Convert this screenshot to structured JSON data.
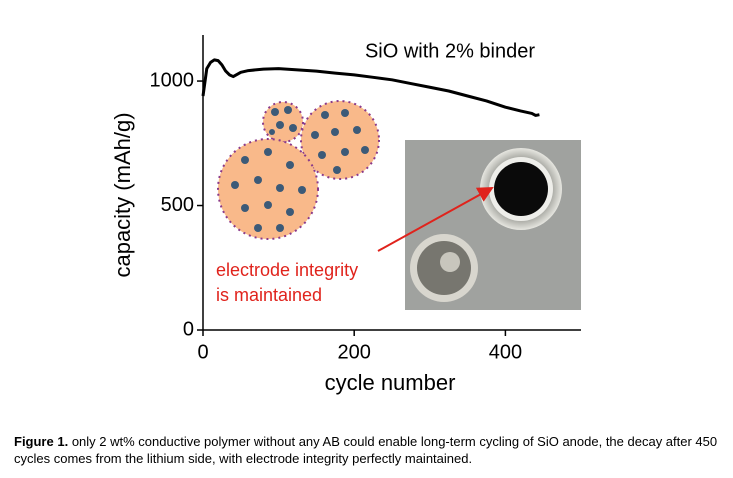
{
  "chart_data": {
    "type": "line",
    "title": "SiO with 2% binder",
    "x_label": "cycle number",
    "y_label": "capacity (mAh/g)",
    "annotations": [
      "electrode integrity",
      "is maintained"
    ],
    "x": [
      0,
      5,
      10,
      15,
      20,
      25,
      30,
      35,
      40,
      50,
      60,
      80,
      100,
      125,
      150,
      175,
      200,
      225,
      250,
      275,
      300,
      325,
      350,
      375,
      400,
      420,
      435,
      440,
      445
    ],
    "series": [
      {
        "name": "SiO with 2% binder",
        "color": "#000000",
        "values": [
          940,
          1050,
          1075,
          1085,
          1082,
          1065,
          1040,
          1025,
          1018,
          1035,
          1042,
          1048,
          1050,
          1045,
          1040,
          1032,
          1025,
          1015,
          1005,
          990,
          975,
          960,
          940,
          920,
          895,
          880,
          870,
          862,
          865
        ]
      }
    ],
    "xlim": [
      0,
      500
    ],
    "ylim": [
      0,
      1185
    ],
    "xticks": [
      0,
      200,
      400
    ],
    "yticks": [
      0,
      500,
      1000
    ],
    "grid": false
  },
  "caption": {
    "label": "Figure 1.",
    "text": "only 2 wt% conductive polymer without any AB could enable long-term cycling of SiO anode, the decay after 450 cycles comes from the lithium side, with electrode integrity perfectly maintained."
  }
}
